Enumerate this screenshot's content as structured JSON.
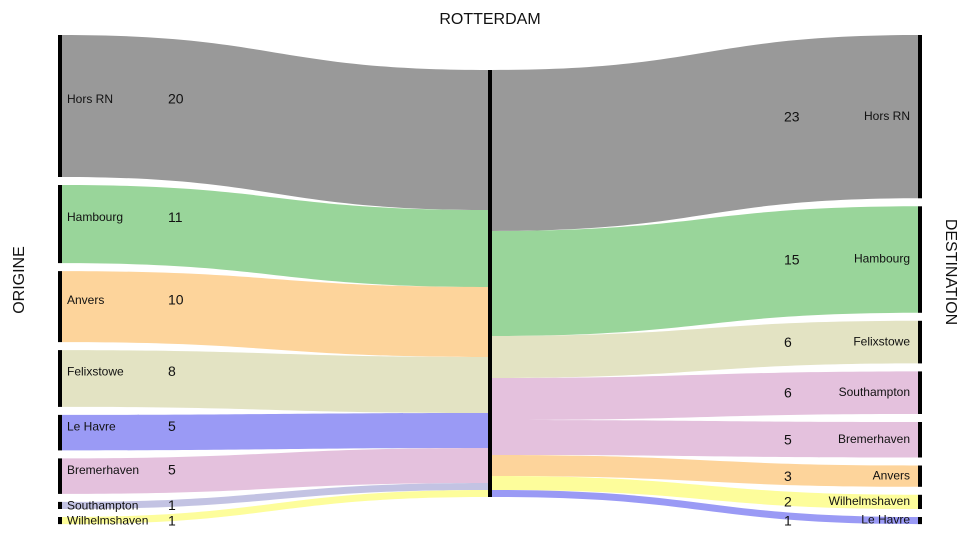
{
  "chart_data": {
    "type": "sankey",
    "title": "ROTTERDAM",
    "left_label": "ORIGINE",
    "right_label": "DESTINATION",
    "origins": [
      {
        "name": "Hors RN",
        "value": 20,
        "color": "#999999"
      },
      {
        "name": "Hambourg",
        "value": 11,
        "color": "#99d59a"
      },
      {
        "name": "Anvers",
        "value": 10,
        "color": "#fdd49b"
      },
      {
        "name": "Felixstowe",
        "value": 8,
        "color": "#e3e3c3"
      },
      {
        "name": "Le Havre",
        "value": 5,
        "color": "#9a9af5"
      },
      {
        "name": "Bremerhaven",
        "value": 5,
        "color": "#e4c1dd"
      },
      {
        "name": "Southampton",
        "value": 1,
        "color": "#c3c3e3"
      },
      {
        "name": "Wilhelmshaven",
        "value": 1,
        "color": "#fdfd9b"
      }
    ],
    "destinations": [
      {
        "name": "Hors RN",
        "value": 23,
        "color": "#999999"
      },
      {
        "name": "Hambourg",
        "value": 15,
        "color": "#99d59a"
      },
      {
        "name": "Felixstowe",
        "value": 6,
        "color": "#e3e3c3"
      },
      {
        "name": "Southampton",
        "value": 6,
        "color": "#e4c1dd"
      },
      {
        "name": "Bremerhaven",
        "value": 5,
        "color": "#e4c1dd"
      },
      {
        "name": "Anvers",
        "value": 3,
        "color": "#fdd49b"
      },
      {
        "name": "Wilhelmshaven",
        "value": 2,
        "color": "#fdfd9b"
      },
      {
        "name": "Le Havre",
        "value": 1,
        "color": "#9a9af5"
      }
    ]
  }
}
